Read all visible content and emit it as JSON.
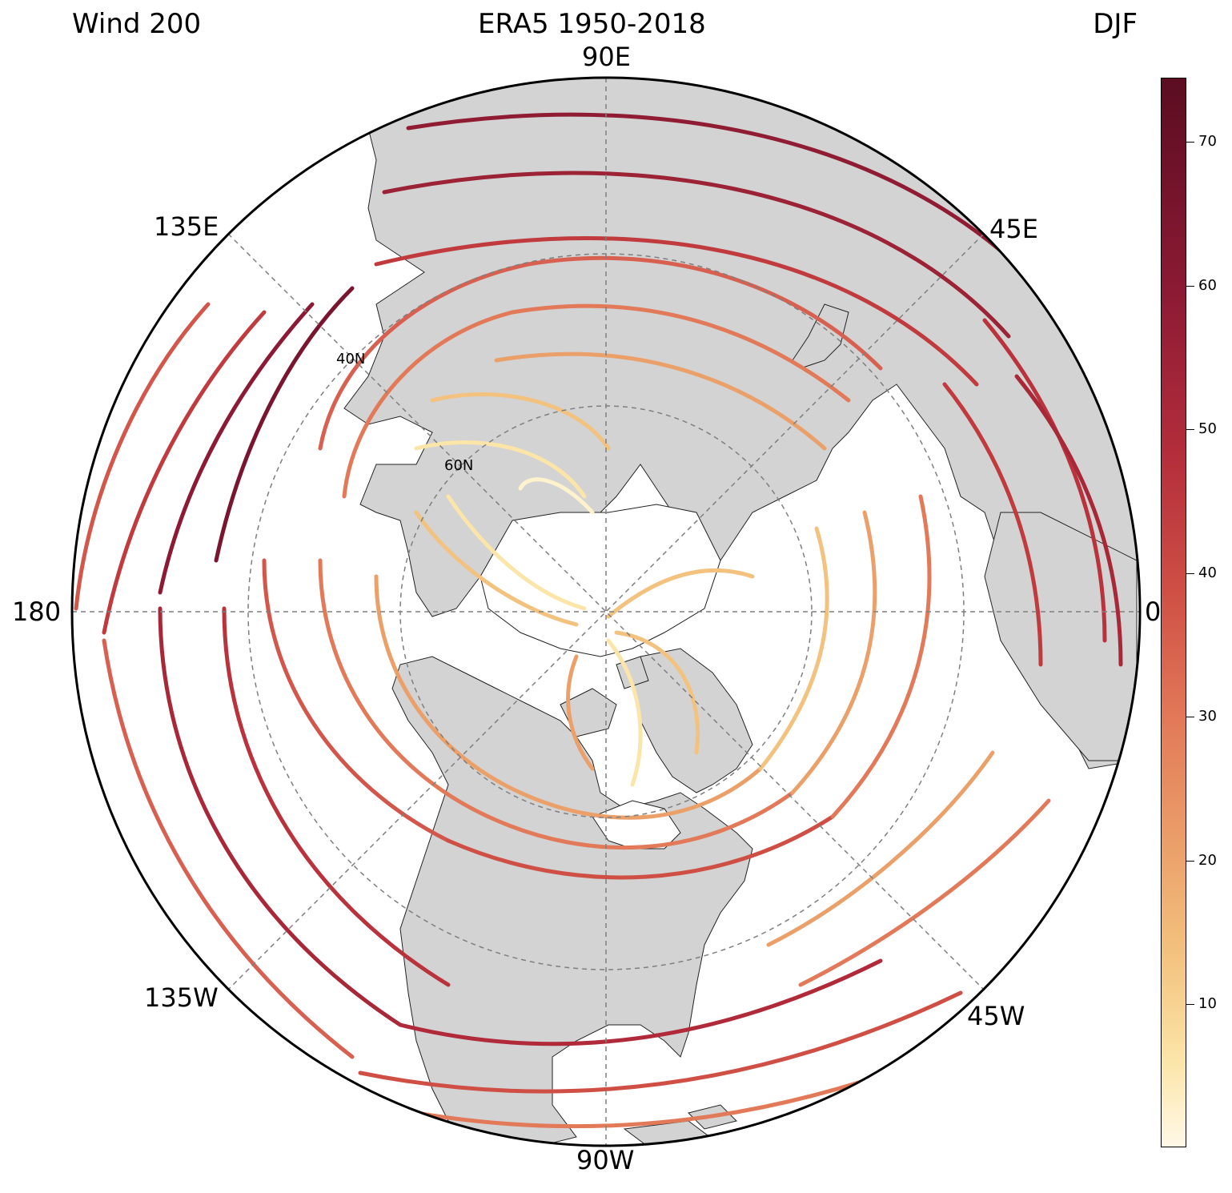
{
  "title": {
    "left": "Wind 200",
    "center": "ERA5 1950-2018",
    "right": "DJF"
  },
  "longitude_labels": {
    "top": "90E",
    "top_right": "45E",
    "right": "0",
    "bottom_right": "45W",
    "bottom": "90W",
    "bottom_left": "135W",
    "left": "180",
    "top_left": "135E"
  },
  "latitude_labels": {
    "lat40": "40N",
    "lat60": "60N"
  },
  "colorbar": {
    "ticks": [
      "10",
      "20",
      "30",
      "40",
      "50",
      "60",
      "70"
    ],
    "colors": [
      "#fff8e7",
      "#fbe5a8",
      "#f3c27e",
      "#eba06a",
      "#e27958",
      "#cf4f45",
      "#b32d3b",
      "#8c1a34",
      "#5b0d21"
    ]
  },
  "map": {
    "projection": "north-polar-stereographic",
    "land_color": "#d3d3d3",
    "gridline_color": "#7f7f7f"
  }
}
